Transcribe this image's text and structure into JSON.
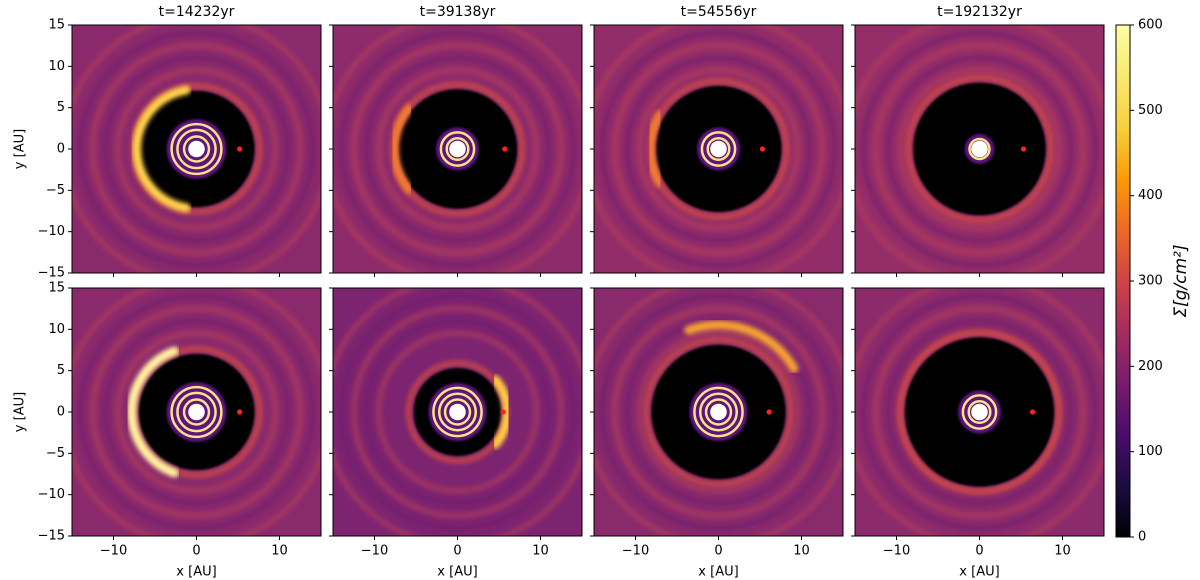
{
  "chart_data": {
    "type": "image-grid",
    "titles": [
      "t=14232yr",
      "t=39138yr",
      "t=54556yr",
      "t=192132yr"
    ],
    "xlabel": "x [AU]",
    "ylabel": "y [AU]",
    "xlim": [
      -15,
      15
    ],
    "ylim": [
      -15,
      15
    ],
    "xticks": [
      {
        "value": -10,
        "label": "−10"
      },
      0,
      10
    ],
    "yticks": [
      {
        "value": -15,
        "label": "−15"
      },
      {
        "value": -10,
        "label": "−10"
      },
      {
        "value": -5,
        "label": "−5"
      },
      0,
      5,
      10,
      15
    ],
    "colorbar": {
      "label": "Σ[g/cm²]",
      "lim": [
        0,
        600
      ],
      "ticks": [
        0,
        100,
        200,
        300,
        400,
        500,
        600
      ],
      "colormap": "inferno"
    },
    "planet_color": "#ff2020",
    "panels": [
      {
        "planet": [
          5.2,
          0
        ]
      },
      {
        "planet": [
          5.7,
          0
        ]
      },
      {
        "planet": [
          5.3,
          0
        ]
      },
      {
        "planet": [
          5.3,
          0
        ]
      },
      {
        "planet": [
          5.2,
          0
        ]
      },
      {
        "planet": [
          5.5,
          0
        ]
      },
      {
        "planet": [
          6.1,
          0
        ]
      },
      {
        "planet": [
          6.4,
          0
        ]
      }
    ]
  }
}
